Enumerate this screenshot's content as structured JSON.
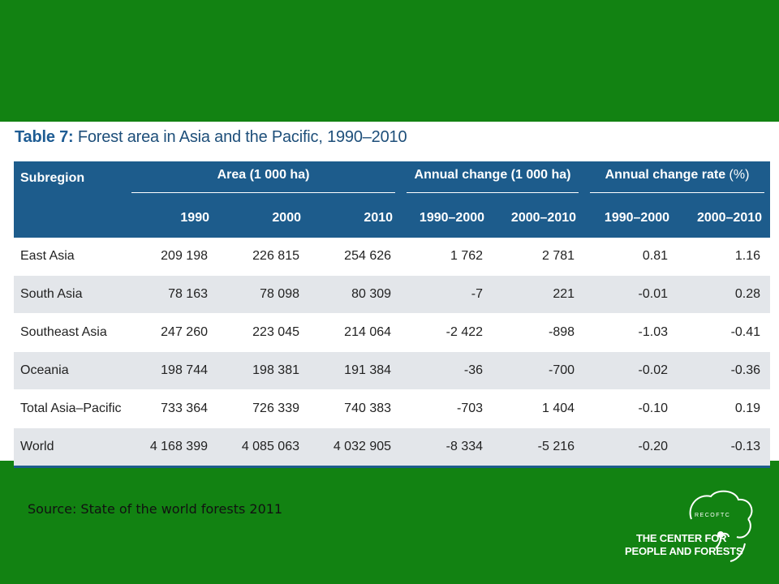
{
  "title": {
    "number": "Table 7:",
    "text": "Forest area in Asia and the Pacific, 1990–2010"
  },
  "headers": {
    "subregion": "Subregion",
    "area": "Area (1 000 ha)",
    "annual_change": "Annual change (1 000 ha)",
    "annual_rate": "Annual change rate",
    "annual_rate_unit": "(%)",
    "years": [
      "1990",
      "2000",
      "2010",
      "1990–2000",
      "2000–2010",
      "1990–2000",
      "2000–2010"
    ]
  },
  "rows": [
    [
      "East Asia",
      "209 198",
      "226 815",
      "254 626",
      "1 762",
      "2 781",
      "0.81",
      "1.16"
    ],
    [
      "South Asia",
      "78 163",
      "78 098",
      "80 309",
      "-7",
      "221",
      "-0.01",
      "0.28"
    ],
    [
      "Southeast Asia",
      "247 260",
      "223 045",
      "214 064",
      "-2 422",
      "-898",
      "-1.03",
      "-0.41"
    ],
    [
      "Oceania",
      "198 744",
      "198 381",
      "191 384",
      "-36",
      "-700",
      "-0.02",
      "-0.36"
    ],
    [
      "Total Asia–Pacific",
      "733 364",
      "726 339",
      "740 383",
      "-703",
      "1 404",
      "-0.10",
      "0.19"
    ],
    [
      "World",
      "4 168 399",
      "4 085 063",
      "4 032 905",
      "-8 334",
      "-5 216",
      "-0.20",
      "-0.13"
    ]
  ],
  "source": "Source: State of the world forests 2011",
  "logo": {
    "abbr": "RECOFTC",
    "line1": "THE CENTER FOR",
    "line2": "PEOPLE AND FORESTS",
    "icon": "tree-logo-icon"
  },
  "colors": {
    "background": "#128212",
    "header": "#1d5c8c",
    "title": "#1e4f7a",
    "row_alt": "#e3e6ea"
  }
}
